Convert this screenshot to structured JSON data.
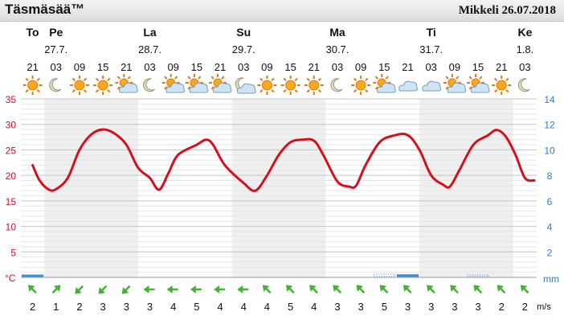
{
  "header": {
    "brand": "Täsmäsää™",
    "location_date": "Mikkeli 26.07.2018"
  },
  "days": [
    {
      "name": "To",
      "date": "",
      "col": 0
    },
    {
      "name": "Pe",
      "date": "27.7.",
      "col": 1
    },
    {
      "name": "La",
      "date": "28.7.",
      "col": 5
    },
    {
      "name": "Su",
      "date": "29.7.",
      "col": 9
    },
    {
      "name": "Ma",
      "date": "30.7.",
      "col": 13
    },
    {
      "name": "Ti",
      "date": "31.7.",
      "col": 17
    },
    {
      "name": "Ke",
      "date": "1.8.",
      "col": 21
    }
  ],
  "hours": [
    "21",
    "03",
    "09",
    "15",
    "21",
    "03",
    "09",
    "15",
    "21",
    "03",
    "09",
    "15",
    "21",
    "03",
    "09",
    "15",
    "21",
    "03",
    "09",
    "15",
    "21",
    "03"
  ],
  "weather_icons": [
    "sun",
    "moon",
    "sun",
    "sun",
    "sun-cloud",
    "moon",
    "sun-cloud",
    "sun-cloud",
    "sun-cloud",
    "moon-cloud",
    "sun",
    "sun",
    "sun",
    "moon",
    "sun",
    "sun-cloud",
    "cloud",
    "cloud",
    "sun-cloud",
    "sun-cloud",
    "sun",
    "moon"
  ],
  "wind": {
    "unit": "m/s",
    "speeds": [
      2,
      1,
      2,
      3,
      3,
      3,
      4,
      5,
      4,
      4,
      4,
      5,
      4,
      3,
      3,
      5,
      3,
      3,
      3,
      3,
      2,
      2
    ],
    "directions": [
      "nw",
      "ne",
      "sw",
      "sw",
      "sw",
      "w",
      "w",
      "w",
      "w",
      "w",
      "nw",
      "nw",
      "nw",
      "nw",
      "nw",
      "nw",
      "nw",
      "nw",
      "nw",
      "nw",
      "nw",
      "nw"
    ]
  },
  "colors": {
    "temperature_line": "#d4101c",
    "temp_axis": "#c8102e",
    "precip_axis": "#2b7bd6",
    "wind_arrow": "#44b233",
    "precip_bar": "#3d8fe0",
    "alt_band": "#efefef"
  },
  "chart_data": {
    "type": "line",
    "x_labels": [
      "21",
      "03",
      "09",
      "15",
      "21",
      "03",
      "09",
      "15",
      "21",
      "03",
      "09",
      "15",
      "21",
      "03",
      "09",
      "15",
      "21",
      "03",
      "09",
      "15",
      "21",
      "03"
    ],
    "temperature": {
      "ylabel": "°C",
      "ylim": [
        0,
        35
      ],
      "ticks": [
        5,
        10,
        15,
        20,
        25,
        30,
        35
      ],
      "points": [
        {
          "t": 0.0,
          "v": 22
        },
        {
          "t": 0.3,
          "v": 19
        },
        {
          "t": 0.7,
          "v": 17.2
        },
        {
          "t": 1.0,
          "v": 17.3
        },
        {
          "t": 1.5,
          "v": 19.5
        },
        {
          "t": 2.0,
          "v": 25
        },
        {
          "t": 2.5,
          "v": 28
        },
        {
          "t": 3.0,
          "v": 29
        },
        {
          "t": 3.5,
          "v": 28.2
        },
        {
          "t": 4.0,
          "v": 26
        },
        {
          "t": 4.5,
          "v": 21.5
        },
        {
          "t": 5.0,
          "v": 19.5
        },
        {
          "t": 5.4,
          "v": 17.2
        },
        {
          "t": 5.8,
          "v": 20.5
        },
        {
          "t": 6.2,
          "v": 24
        },
        {
          "t": 7.0,
          "v": 26
        },
        {
          "t": 7.4,
          "v": 27
        },
        {
          "t": 7.7,
          "v": 26
        },
        {
          "t": 8.2,
          "v": 22
        },
        {
          "t": 9.0,
          "v": 18.5
        },
        {
          "t": 9.5,
          "v": 17
        },
        {
          "t": 10.0,
          "v": 20
        },
        {
          "t": 10.5,
          "v": 24
        },
        {
          "t": 11.0,
          "v": 26.5
        },
        {
          "t": 11.5,
          "v": 27
        },
        {
          "t": 12.0,
          "v": 26.8
        },
        {
          "t": 12.4,
          "v": 24
        },
        {
          "t": 13.0,
          "v": 18.8
        },
        {
          "t": 13.5,
          "v": 17.8
        },
        {
          "t": 13.8,
          "v": 18
        },
        {
          "t": 14.2,
          "v": 22
        },
        {
          "t": 14.8,
          "v": 26.5
        },
        {
          "t": 15.4,
          "v": 27.8
        },
        {
          "t": 16.0,
          "v": 27.9
        },
        {
          "t": 16.5,
          "v": 25
        },
        {
          "t": 17.0,
          "v": 20
        },
        {
          "t": 17.5,
          "v": 18.2
        },
        {
          "t": 17.8,
          "v": 17.8
        },
        {
          "t": 18.2,
          "v": 21
        },
        {
          "t": 18.8,
          "v": 26
        },
        {
          "t": 19.4,
          "v": 27.8
        },
        {
          "t": 19.8,
          "v": 28.9
        },
        {
          "t": 20.2,
          "v": 27.5
        },
        {
          "t": 20.6,
          "v": 24
        },
        {
          "t": 21.0,
          "v": 19.5
        },
        {
          "t": 21.4,
          "v": 19
        }
      ]
    },
    "precipitation": {
      "ylabel": "mm",
      "ylim": [
        0,
        14
      ],
      "ticks": [
        2,
        4,
        6,
        8,
        10,
        12,
        14
      ],
      "bars": [
        {
          "col": 0,
          "value": 0.1,
          "style": "solid"
        },
        {
          "col": 15,
          "value": 0.2,
          "style": "dotted"
        },
        {
          "col": 16,
          "value": 0.15,
          "style": "solid"
        },
        {
          "col": 19,
          "value": 0.1,
          "style": "dotted"
        }
      ]
    },
    "grid": true
  }
}
